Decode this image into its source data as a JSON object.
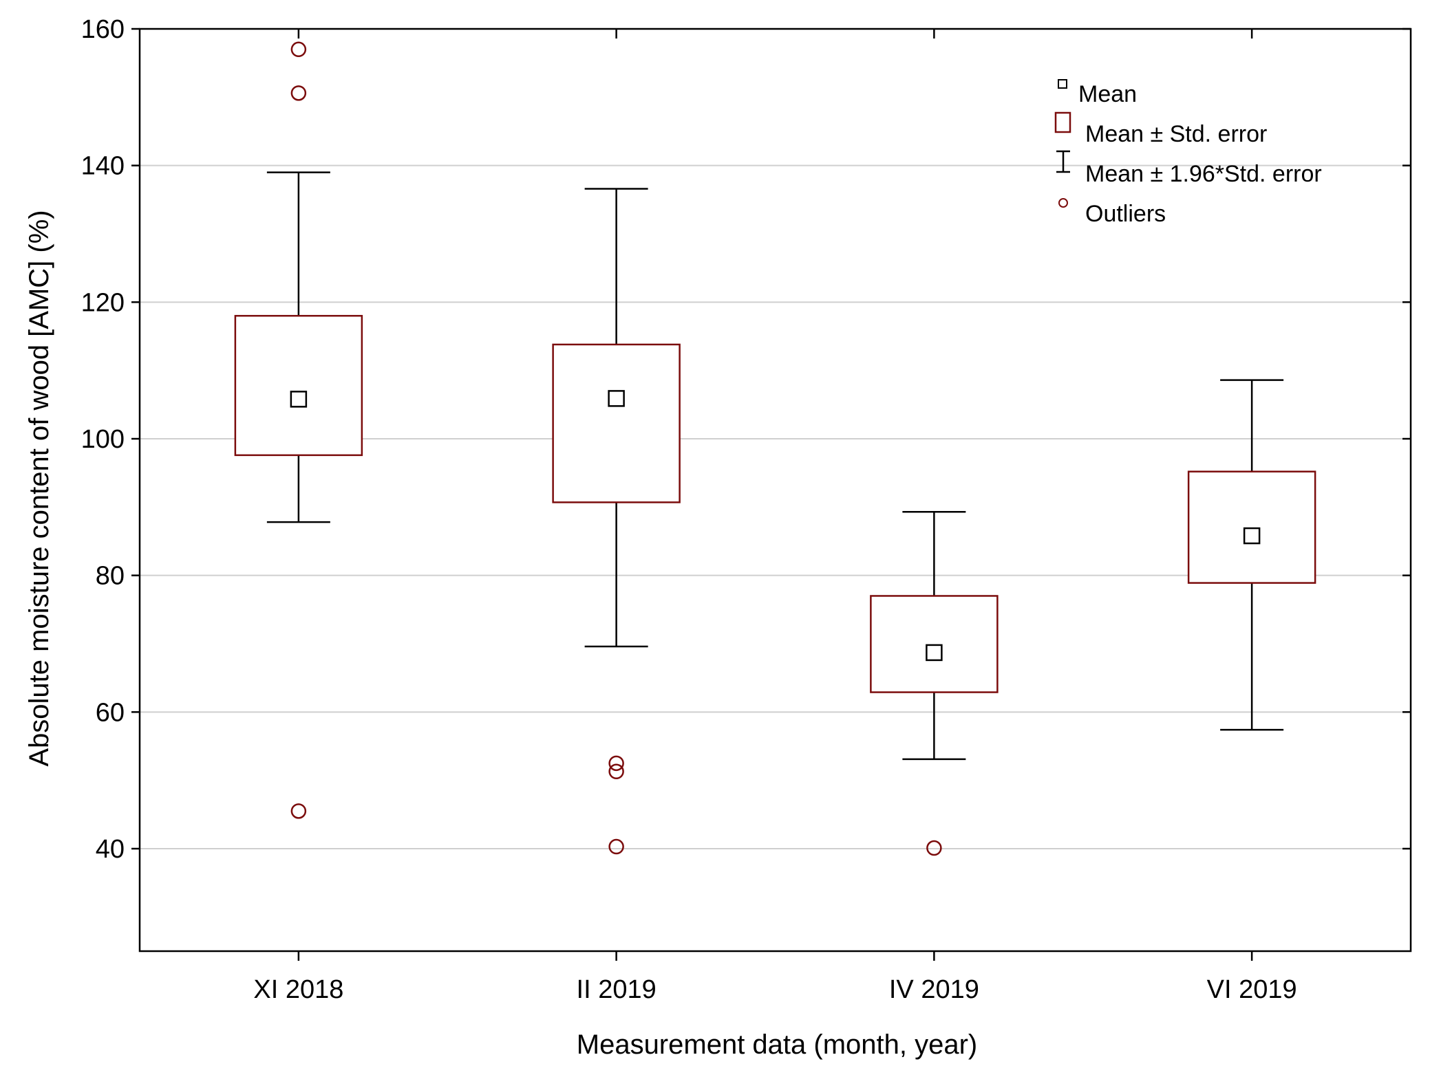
{
  "chart_data": {
    "type": "box",
    "title": "",
    "xlabel": "Measurement data (month, year)",
    "ylabel": "Absolute moisture content of wood [AMC] (%)",
    "ylim": [
      25,
      160
    ],
    "yticks": [
      40,
      60,
      80,
      100,
      120,
      140,
      160
    ],
    "grid": true,
    "legend_position": "top-right",
    "categories": [
      "XI 2018",
      "II 2019",
      "IV 2019",
      "VI 2019"
    ],
    "series": [
      {
        "category": "XI 2018",
        "mean": 105.8,
        "se_low": 97.6,
        "se_high": 118.0,
        "ci_low": 87.8,
        "ci_high": 139.0,
        "outliers": [
          157.0,
          150.6,
          45.5
        ]
      },
      {
        "category": "II 2019",
        "mean": 105.9,
        "se_low": 90.7,
        "se_high": 113.8,
        "ci_low": 69.6,
        "ci_high": 136.6,
        "outliers": [
          52.5,
          51.3,
          40.3
        ]
      },
      {
        "category": "IV 2019",
        "mean": 68.7,
        "se_low": 62.9,
        "se_high": 77.0,
        "ci_low": 53.1,
        "ci_high": 89.3,
        "outliers": [
          40.1
        ]
      },
      {
        "category": "VI 2019",
        "mean": 85.8,
        "se_low": 78.9,
        "se_high": 95.2,
        "ci_low": 57.4,
        "ci_high": 108.6,
        "outliers": []
      }
    ],
    "legend": [
      {
        "key": "mean",
        "label": "Mean"
      },
      {
        "key": "se",
        "label": "Mean ± Std. error"
      },
      {
        "key": "ci",
        "label": "Mean ±  1.96*Std. error"
      },
      {
        "key": "outlier",
        "label": "Outliers"
      }
    ],
    "colors": {
      "box": "#7b0c0c",
      "whisker": "#000000",
      "mean": "#000000",
      "outlier": "#7b0c0c",
      "grid": "#cfcfcf",
      "axis": "#000000"
    }
  }
}
